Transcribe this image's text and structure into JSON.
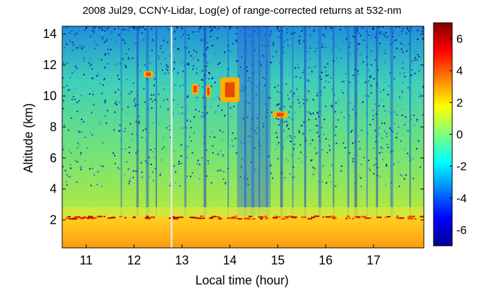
{
  "chart_data": {
    "type": "heatmap",
    "title": "2008 Jul29, CCNY-Lidar, Log(e) of range-corrected returns at 532-nm",
    "xlabel": "Local time (hour)",
    "ylabel": "Altitude (km)",
    "xlim": [
      10.5,
      18.05
    ],
    "ylim": [
      0.2,
      14.5
    ],
    "x_ticks": [
      11,
      12,
      13,
      14,
      15,
      16,
      17
    ],
    "y_ticks": [
      2,
      4,
      6,
      8,
      10,
      12,
      14
    ],
    "colorbar": {
      "range": [
        -7,
        7
      ],
      "ticks": [
        -6,
        -4,
        -2,
        0,
        2,
        4,
        6
      ],
      "colormap": "jet"
    },
    "features": {
      "boundary_layer_top_km": 2.2,
      "data_gap_time_hour": 12.78,
      "cirrus_clouds": [
        {
          "time_start": 13.2,
          "time_end": 13.35,
          "alt_low": 10.1,
          "alt_high": 10.8
        },
        {
          "time_start": 13.5,
          "time_end": 13.6,
          "alt_low": 9.9,
          "alt_high": 10.7
        },
        {
          "time_start": 13.8,
          "time_end": 14.2,
          "alt_low": 9.6,
          "alt_high": 11.2
        },
        {
          "time_start": 12.2,
          "time_end": 12.4,
          "alt_low": 11.2,
          "alt_high": 11.6
        },
        {
          "time_start": 14.9,
          "time_end": 15.2,
          "alt_low": 8.6,
          "alt_high": 9.0
        }
      ]
    }
  }
}
